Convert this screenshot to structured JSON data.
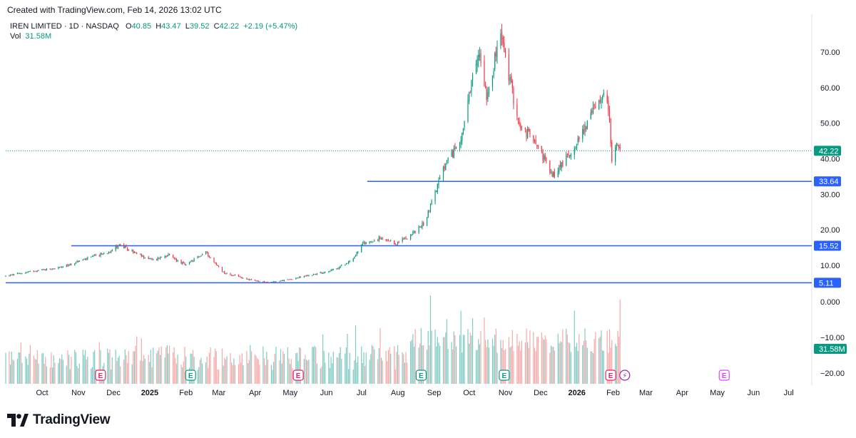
{
  "header": {
    "created_text": "Created with TradingView.com, Feb 14, 2026 13:02 UTC"
  },
  "legend": {
    "symbol": "IREN LIMITED · 1D · NASDAQ",
    "o_label": "O",
    "o_value": "40.85",
    "h_label": "H",
    "h_value": "43.47",
    "l_label": "L",
    "l_value": "39.52",
    "c_label": "C",
    "c_value": "42.22",
    "change": "+2.19 (+5.47%)",
    "vol_label": "Vol",
    "vol_value": "31.58M"
  },
  "brand": {
    "name": "TradingView"
  },
  "colors": {
    "up": "#089981",
    "down": "#f23645",
    "line": "#2962ff",
    "vol_up": "#80cbc4",
    "vol_down": "#f7a9a7",
    "earnings": "#e91e63",
    "dividend": "#089981"
  },
  "chart_data": {
    "type": "candlestick",
    "symbol": "IREN",
    "interval": "1D",
    "exchange": "NASDAQ",
    "price_axis": {
      "ticks": [
        "70.00",
        "60.00",
        "50.00",
        "40.00",
        "30.00",
        "20.00",
        "10.00"
      ],
      "tick_values": [
        70,
        60,
        50,
        40,
        30,
        20,
        10
      ],
      "range": [
        4.3,
        78
      ]
    },
    "volume_axis": {
      "ticks": [
        "0.000",
        "−10.00",
        "−20.00"
      ]
    },
    "x_axis": {
      "ticks": [
        "Oct",
        "Nov",
        "Dec",
        "2025",
        "Feb",
        "Mar",
        "Apr",
        "May",
        "Jun",
        "Jul",
        "Aug",
        "Sep",
        "Oct",
        "Nov",
        "Dec",
        "2026",
        "Feb",
        "Mar",
        "Apr",
        "May",
        "Jun",
        "Jul"
      ],
      "bold_ticks": [
        "2025",
        "2026"
      ],
      "start": "2024-09-06",
      "end": "2026-07-31"
    },
    "last_price": {
      "value": 42.22,
      "label": "42.22"
    },
    "last_volume": {
      "label": "31.58M"
    },
    "horizontal_lines": [
      {
        "price": 33.64,
        "label": "33.64",
        "from_date": "2025-07-12"
      },
      {
        "price": 15.52,
        "label": "15.52",
        "from_date": "2024-11-01"
      },
      {
        "price": 5.11,
        "label": "5.11",
        "from_date": "2024-09-06"
      }
    ],
    "price_path_anchors": [
      [
        "2024-09-06",
        7.0
      ],
      [
        "2024-10-01",
        8.5
      ],
      [
        "2024-10-25",
        9.5
      ],
      [
        "2024-11-10",
        11.5
      ],
      [
        "2024-12-01",
        13.5
      ],
      [
        "2024-12-12",
        15.8
      ],
      [
        "2024-12-28",
        13.0
      ],
      [
        "2025-01-10",
        11.5
      ],
      [
        "2025-01-22",
        13.0
      ],
      [
        "2025-02-07",
        10.0
      ],
      [
        "2025-02-24",
        13.8
      ],
      [
        "2025-03-04",
        10.5
      ],
      [
        "2025-03-12",
        7.8
      ],
      [
        "2025-04-07",
        5.6
      ],
      [
        "2025-04-20",
        5.2
      ],
      [
        "2025-05-06",
        6.0
      ],
      [
        "2025-05-28",
        7.5
      ],
      [
        "2025-06-16",
        9.0
      ],
      [
        "2025-06-30",
        12.0
      ],
      [
        "2025-07-08",
        16.0
      ],
      [
        "2025-07-22",
        17.5
      ],
      [
        "2025-08-05",
        16.0
      ],
      [
        "2025-08-20",
        19.0
      ],
      [
        "2025-08-30",
        22.0
      ],
      [
        "2025-09-05",
        28.0
      ],
      [
        "2025-09-15",
        37.0
      ],
      [
        "2025-09-29",
        45.0
      ],
      [
        "2025-10-03",
        50.0
      ],
      [
        "2025-10-10",
        62.0
      ],
      [
        "2025-10-16",
        70.0
      ],
      [
        "2025-10-22",
        58.0
      ],
      [
        "2025-11-03",
        75.0
      ],
      [
        "2025-11-12",
        60.0
      ],
      [
        "2025-11-20",
        48.0
      ],
      [
        "2025-12-02",
        46.0
      ],
      [
        "2025-12-10",
        40.0
      ],
      [
        "2025-12-17",
        35.0
      ],
      [
        "2025-12-24",
        38.0
      ],
      [
        "2025-12-31",
        41.0
      ],
      [
        "2026-01-08",
        45.0
      ],
      [
        "2026-01-20",
        53.0
      ],
      [
        "2026-01-28",
        58.0
      ],
      [
        "2026-02-03",
        55.0
      ],
      [
        "2026-02-06",
        40.0
      ],
      [
        "2026-02-11",
        44.0
      ],
      [
        "2026-02-13",
        42.22
      ]
    ],
    "event_markers": [
      {
        "date": "2024-11-26",
        "type": "earnings",
        "glyph": "E"
      },
      {
        "date": "2025-02-11",
        "type": "dividend",
        "glyph": "E"
      },
      {
        "date": "2025-05-14",
        "type": "earnings",
        "glyph": "E"
      },
      {
        "date": "2025-08-27",
        "type": "dividend",
        "glyph": "E"
      },
      {
        "date": "2025-11-06",
        "type": "dividend",
        "glyph": "E"
      },
      {
        "date": "2026-02-05",
        "type": "earnings",
        "glyph": "E"
      },
      {
        "date": "2026-02-17",
        "type": "split",
        "glyph": "⚡"
      },
      {
        "date": "2026-05-13",
        "type": "upcoming",
        "glyph": "E"
      }
    ]
  }
}
